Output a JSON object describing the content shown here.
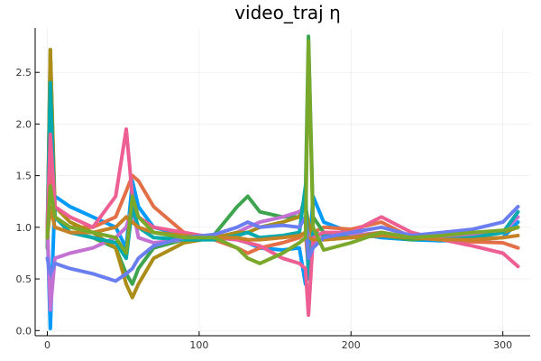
{
  "chart_data": {
    "type": "line",
    "title": "video_traj η",
    "xlabel": "",
    "ylabel": "",
    "xlim": [
      -8,
      318
    ],
    "ylim": [
      -0.05,
      2.93
    ],
    "xticks": [
      0,
      100,
      200,
      300
    ],
    "yticks": [
      0.0,
      0.5,
      1.0,
      1.5,
      2.0,
      2.5
    ],
    "xtick_labels": [
      "0",
      "100",
      "200",
      "300"
    ],
    "ytick_labels": [
      "0.0",
      "0.5",
      "1.0",
      "1.5",
      "2.0",
      "2.5"
    ],
    "grid": true,
    "legend": "none",
    "series": [
      {
        "color": "#009AFA",
        "x": [
          0,
          2,
          5,
          15,
          30,
          45,
          52,
          56,
          60,
          70,
          90,
          110,
          125,
          132,
          140,
          155,
          166,
          170,
          172,
          175,
          182,
          200,
          220,
          240,
          260,
          280,
          300,
          310
        ],
        "y": [
          1.0,
          0.02,
          1.3,
          1.2,
          1.1,
          1.0,
          0.8,
          1.45,
          1.2,
          1.0,
          0.92,
          0.9,
          0.88,
          0.85,
          0.8,
          0.78,
          0.8,
          0.45,
          0.6,
          1.3,
          1.05,
          0.95,
          0.9,
          0.88,
          0.87,
          0.88,
          0.9,
          1.05
        ]
      },
      {
        "color": "#E36F47",
        "x": [
          0,
          2,
          5,
          15,
          30,
          45,
          52,
          56,
          60,
          70,
          90,
          110,
          125,
          132,
          140,
          155,
          166,
          170,
          172,
          175,
          182,
          200,
          220,
          240,
          260,
          280,
          300,
          310
        ],
        "y": [
          0.9,
          1.6,
          1.1,
          1.0,
          1.0,
          1.1,
          1.35,
          1.5,
          1.45,
          1.2,
          0.95,
          0.88,
          0.8,
          0.75,
          0.8,
          0.85,
          0.9,
          0.95,
          0.6,
          0.95,
          1.0,
          0.98,
          1.05,
          0.9,
          0.88,
          0.86,
          0.85,
          0.8
        ]
      },
      {
        "color": "#3EA44E",
        "x": [
          0,
          2,
          5,
          15,
          30,
          45,
          52,
          56,
          60,
          70,
          90,
          110,
          125,
          132,
          140,
          155,
          166,
          170,
          172,
          175,
          182,
          200,
          220,
          240,
          260,
          280,
          300,
          310
        ],
        "y": [
          0.8,
          2.72,
          1.1,
          0.95,
          0.9,
          0.8,
          0.55,
          0.45,
          0.6,
          0.8,
          0.88,
          0.93,
          1.2,
          1.3,
          1.15,
          1.1,
          1.1,
          1.3,
          2.85,
          1.1,
          0.95,
          0.9,
          0.92,
          0.88,
          0.9,
          0.92,
          0.95,
          1.0
        ]
      },
      {
        "color": "#C371D2",
        "x": [
          0,
          2,
          5,
          15,
          30,
          45,
          52,
          56,
          60,
          70,
          90,
          110,
          125,
          132,
          140,
          155,
          166,
          170,
          172,
          175,
          182,
          200,
          220,
          240,
          260,
          280,
          300,
          310
        ],
        "y": [
          1.0,
          0.2,
          0.7,
          0.75,
          0.8,
          0.9,
          1.0,
          1.2,
          0.9,
          0.85,
          0.88,
          0.9,
          0.95,
          1.0,
          1.05,
          1.1,
          1.15,
          1.2,
          1.0,
          0.85,
          0.9,
          0.92,
          0.95,
          0.9,
          0.9,
          0.92,
          0.95,
          1.1
        ]
      },
      {
        "color": "#AC8D18",
        "x": [
          0,
          2,
          5,
          15,
          30,
          45,
          52,
          56,
          60,
          70,
          90,
          110,
          125,
          132,
          140,
          155,
          166,
          170,
          172,
          175,
          182,
          200,
          220,
          240,
          260,
          280,
          300,
          310
        ],
        "y": [
          0.9,
          2.72,
          1.2,
          1.05,
          0.95,
          0.8,
          0.45,
          0.32,
          0.45,
          0.7,
          0.85,
          0.9,
          0.95,
          0.95,
          1.0,
          1.05,
          1.1,
          1.2,
          1.05,
          0.9,
          0.88,
          0.9,
          0.95,
          0.9,
          0.88,
          0.9,
          0.95,
          1.0
        ]
      },
      {
        "color": "#00A9AD",
        "x": [
          0,
          2,
          5,
          15,
          30,
          45,
          52,
          56,
          60,
          70,
          90,
          110,
          125,
          132,
          140,
          155,
          166,
          170,
          172,
          175,
          182,
          200,
          220,
          240,
          260,
          280,
          300,
          310
        ],
        "y": [
          1.0,
          2.4,
          1.1,
          0.95,
          0.9,
          0.85,
          0.7,
          1.2,
          1.0,
          0.9,
          0.88,
          0.88,
          0.92,
          0.95,
          0.9,
          0.92,
          0.95,
          1.4,
          0.5,
          0.95,
          0.92,
          0.9,
          0.92,
          0.9,
          0.88,
          0.9,
          0.95,
          1.15
        ]
      },
      {
        "color": "#ED5E93",
        "x": [
          0,
          2,
          5,
          15,
          30,
          45,
          52,
          56,
          60,
          70,
          90,
          110,
          125,
          132,
          140,
          155,
          166,
          170,
          172,
          175,
          182,
          200,
          220,
          240,
          260,
          280,
          300,
          310
        ],
        "y": [
          1.0,
          1.9,
          1.2,
          1.1,
          1.0,
          1.3,
          1.95,
          1.3,
          1.1,
          1.0,
          0.95,
          0.9,
          0.88,
          0.85,
          0.82,
          0.7,
          0.65,
          0.6,
          0.15,
          0.9,
          0.95,
          0.95,
          1.1,
          0.95,
          0.88,
          0.82,
          0.75,
          0.62
        ]
      },
      {
        "color": "#C68225",
        "x": [
          0,
          2,
          5,
          15,
          30,
          45,
          52,
          56,
          60,
          70,
          90,
          110,
          125,
          132,
          140,
          155,
          166,
          170,
          172,
          175,
          182,
          200,
          220,
          240,
          260,
          280,
          300,
          310
        ],
        "y": [
          0.9,
          1.2,
          1.0,
          0.95,
          0.95,
          1.0,
          1.1,
          1.05,
          1.0,
          0.95,
          0.92,
          0.9,
          0.9,
          0.88,
          0.88,
          0.9,
          0.92,
          0.95,
          0.9,
          0.88,
          0.88,
          0.9,
          0.92,
          0.9,
          0.88,
          0.88,
          0.9,
          0.92
        ]
      },
      {
        "color": "#6B7EF0",
        "x": [
          0,
          2,
          5,
          15,
          30,
          45,
          52,
          56,
          60,
          70,
          90,
          110,
          125,
          132,
          140,
          155,
          166,
          170,
          172,
          175,
          182,
          200,
          220,
          240,
          260,
          280,
          300,
          310
        ],
        "y": [
          0.7,
          0.55,
          0.65,
          0.6,
          0.55,
          0.48,
          0.55,
          0.6,
          0.7,
          0.82,
          0.9,
          0.93,
          1.0,
          1.05,
          1.0,
          1.02,
          1.0,
          1.1,
          0.7,
          0.8,
          0.9,
          0.95,
          1.0,
          0.92,
          0.95,
          0.98,
          1.05,
          1.2
        ]
      },
      {
        "color": "#7AA82B",
        "x": [
          0,
          2,
          5,
          15,
          30,
          45,
          52,
          56,
          60,
          70,
          90,
          110,
          125,
          132,
          140,
          155,
          166,
          170,
          172,
          175,
          182,
          200,
          220,
          240,
          260,
          280,
          300,
          310
        ],
        "y": [
          0.9,
          1.4,
          1.1,
          1.0,
          0.95,
          0.9,
          0.75,
          1.3,
          1.1,
          0.95,
          0.9,
          0.9,
          0.8,
          0.7,
          0.65,
          0.75,
          0.85,
          0.9,
          2.8,
          1.0,
          0.78,
          0.85,
          0.95,
          0.9,
          0.92,
          0.95,
          0.97,
          1.0
        ]
      }
    ]
  }
}
